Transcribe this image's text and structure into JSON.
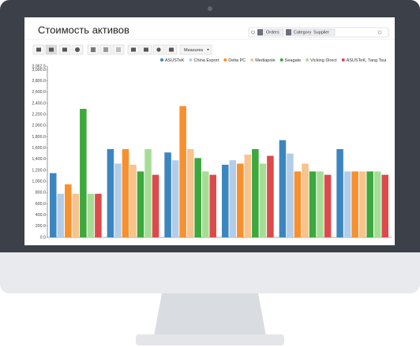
{
  "app": {
    "title": "Стоимость активов",
    "search": {
      "facets": [
        "Orders",
        "Category",
        "Supplier"
      ]
    },
    "toolbar": {
      "measures": "Measures"
    }
  },
  "chart_data": {
    "type": "bar",
    "categories": [
      null,
      null,
      null,
      null,
      null,
      null
    ],
    "series": [
      {
        "name": "ASUSTeK",
        "color": "#3c86c0",
        "values": [
          1150,
          1580,
          1520,
          1300,
          1740,
          1580
        ]
      },
      {
        "name": "China Export",
        "color": "#b3cde8",
        "values": [
          780,
          1320,
          1380,
          1380,
          1500,
          1180
        ]
      },
      {
        "name": "Delta PC",
        "color": "#f7902e",
        "values": [
          950,
          1580,
          2350,
          1320,
          1180,
          1180
        ]
      },
      {
        "name": "Mediapole",
        "color": "#f8c38c",
        "values": [
          780,
          1300,
          1580,
          1480,
          1320,
          1180
        ]
      },
      {
        "name": "Seagate",
        "color": "#3da83d",
        "values": [
          2300,
          1180,
          1420,
          1580,
          1180,
          1180
        ]
      },
      {
        "name": "Vicking Direct",
        "color": "#a6dd96",
        "values": [
          780,
          1580,
          1180,
          1320,
          1180,
          1180
        ]
      },
      {
        "name": "ASUSTeK, Tang Tsui",
        "color": "#dc4a4c",
        "values": [
          780,
          1120,
          1120,
          1460,
          1120,
          1120
        ]
      }
    ],
    "ylim": [
      0,
      3062.5
    ],
    "yticks": [
      {
        "value": 0,
        "label": "0.0"
      },
      {
        "value": 200,
        "label": "200.0"
      },
      {
        "value": 400,
        "label": "400.0"
      },
      {
        "value": 600,
        "label": "600.0"
      },
      {
        "value": 800,
        "label": "800.0"
      },
      {
        "value": 1000,
        "label": "1,000.0"
      },
      {
        "value": 1200,
        "label": "1,200.0"
      },
      {
        "value": 1400,
        "label": "1,400.0"
      },
      {
        "value": 1600,
        "label": "1,600.0"
      },
      {
        "value": 1800,
        "label": "1,800.0"
      },
      {
        "value": 2000,
        "label": "2,000.0"
      },
      {
        "value": 2200,
        "label": "2,200.0"
      },
      {
        "value": 2400,
        "label": "2,400.0"
      },
      {
        "value": 2600,
        "label": "2,600.0"
      },
      {
        "value": 2800,
        "label": "2,800.0"
      },
      {
        "value": 3000,
        "label": "3,000.0"
      },
      {
        "value": 3062.5,
        "label": "3,062.5"
      }
    ],
    "grid": false
  }
}
